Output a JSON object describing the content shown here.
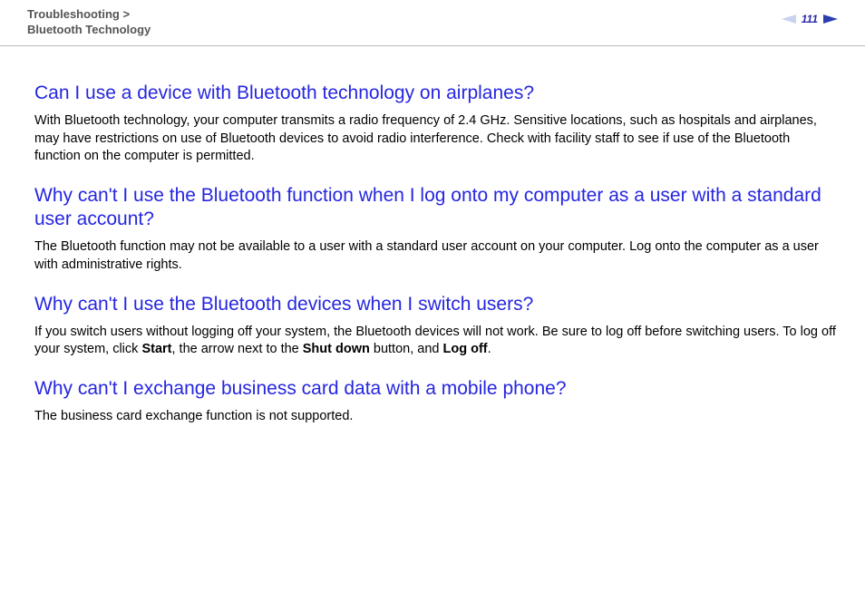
{
  "header": {
    "breadcrumb_section": "Troubleshooting",
    "breadcrumb_sep": ">",
    "breadcrumb_page": "Bluetooth Technology",
    "page_number": "111"
  },
  "colors": {
    "heading": "#2626e0",
    "body_text": "#000000",
    "breadcrumb": "#555555",
    "pagenum": "#2a2aaa",
    "divider": "#bbbbbb",
    "background": "#ffffff",
    "arrow_left": "#c9d3ec",
    "arrow_right": "#2a3fb0"
  },
  "typography": {
    "heading_fontsize_pt": 16,
    "body_fontsize_pt": 11,
    "breadcrumb_fontsize_pt": 10,
    "font_family": "Arial, Helvetica, sans-serif"
  },
  "faq": [
    {
      "question": "Can I use a device with Bluetooth technology on airplanes?",
      "answer_parts": [
        {
          "text": "With Bluetooth technology, your computer transmits a radio frequency of 2.4 GHz. Sensitive locations, such as hospitals and airplanes, may have restrictions on use of Bluetooth devices to avoid radio interference. Check with facility staff to see if use of the Bluetooth function on the computer is permitted.",
          "bold": false
        }
      ]
    },
    {
      "question": "Why can't I use the Bluetooth function when I log onto my computer as a user with a standard user account?",
      "answer_parts": [
        {
          "text": "The Bluetooth function may not be available to a user with a standard user account on your computer. Log onto the computer as a user with administrative rights.",
          "bold": false
        }
      ]
    },
    {
      "question": "Why can't I use the Bluetooth devices when I switch users?",
      "answer_parts": [
        {
          "text": "If you switch users without logging off your system, the Bluetooth devices will not work. Be sure to log off before switching users. To log off your system, click ",
          "bold": false
        },
        {
          "text": "Start",
          "bold": true
        },
        {
          "text": ", the arrow next to the ",
          "bold": false
        },
        {
          "text": "Shut down",
          "bold": true
        },
        {
          "text": " button, and ",
          "bold": false
        },
        {
          "text": "Log off",
          "bold": true
        },
        {
          "text": ".",
          "bold": false
        }
      ]
    },
    {
      "question": "Why can't I exchange business card data with a mobile phone?",
      "answer_parts": [
        {
          "text": "The business card exchange function is not supported.",
          "bold": false
        }
      ]
    }
  ]
}
